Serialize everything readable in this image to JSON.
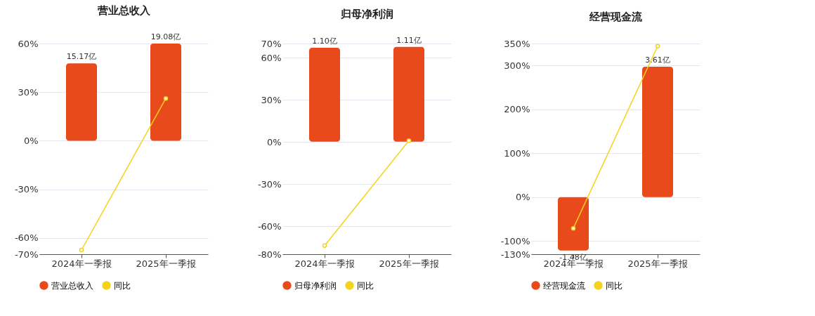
{
  "chart_data": [
    {
      "type": "bar",
      "title": "营业总收入",
      "categories": [
        "2024年一季报",
        "2025年一季报"
      ],
      "series": [
        {
          "name": "营业总收入",
          "axis": "y2",
          "color": "#e84a1c",
          "values": [
            15.17,
            19.08
          ],
          "value_labels": [
            "15.17亿",
            "19.08亿"
          ]
        },
        {
          "name": "同比",
          "type": "line",
          "color": "#f5d31a",
          "marker": "circle",
          "values": [
            -67.4,
            26.1
          ]
        }
      ],
      "ylim": [
        -70,
        60
      ],
      "yticks": [
        {
          "value": -70,
          "label": "-70%"
        },
        {
          "value": -60,
          "label": "-60%"
        },
        {
          "value": -30,
          "label": "-30%"
        },
        {
          "value": 0,
          "label": "0%"
        },
        {
          "value": 30,
          "label": "30%"
        },
        {
          "value": 60,
          "label": "60%"
        }
      ],
      "y2lim": [
        -22.26,
        19.08
      ],
      "grid": "y",
      "legend": "bottom"
    },
    {
      "type": "bar",
      "title": "归母净利润",
      "categories": [
        "2024年一季报",
        "2025年一季报"
      ],
      "series": [
        {
          "name": "归母净利润",
          "axis": "y2",
          "color": "#e84a1c",
          "values": [
            1.1,
            1.11
          ],
          "value_labels": [
            "1.10亿",
            "1.11亿"
          ]
        },
        {
          "name": "同比",
          "type": "line",
          "color": "#f5d31a",
          "marker": "circle",
          "values": [
            -73.9,
            0.9
          ]
        }
      ],
      "ylim": [
        -80,
        70
      ],
      "yticks": [
        {
          "value": -80,
          "label": "-80%"
        },
        {
          "value": -60,
          "label": "-60%"
        },
        {
          "value": -30,
          "label": "-30%"
        },
        {
          "value": 0,
          "label": "0%"
        },
        {
          "value": 30,
          "label": "30%"
        },
        {
          "value": 60,
          "label": "60%"
        },
        {
          "value": 70,
          "label": "70%"
        }
      ],
      "y2lim": [
        -1.32,
        1.15
      ],
      "grid": "y",
      "legend": "bottom"
    },
    {
      "type": "bar",
      "title": "经营现金流",
      "categories": [
        "2024年一季报",
        "2025年一季报"
      ],
      "series": [
        {
          "name": "经营现金流",
          "axis": "y2",
          "color": "#e84a1c",
          "values": [
            -1.48,
            3.61
          ],
          "value_labels": [
            "-1.48亿",
            "3.61亿"
          ]
        },
        {
          "name": "同比",
          "type": "line",
          "color": "#f5d31a",
          "marker": "circle",
          "values": [
            -71,
            344
          ]
        }
      ],
      "ylim": [
        -130,
        350
      ],
      "yticks": [
        {
          "value": -130,
          "label": "-130%"
        },
        {
          "value": -100,
          "label": "-100%"
        },
        {
          "value": 0,
          "label": "0%"
        },
        {
          "value": 100,
          "label": "100%"
        },
        {
          "value": 200,
          "label": "200%"
        },
        {
          "value": 300,
          "label": "300%"
        },
        {
          "value": 350,
          "label": "350%"
        }
      ],
      "y2lim": [
        -1.58,
        4.25
      ],
      "grid": "y",
      "legend": "bottom"
    }
  ]
}
